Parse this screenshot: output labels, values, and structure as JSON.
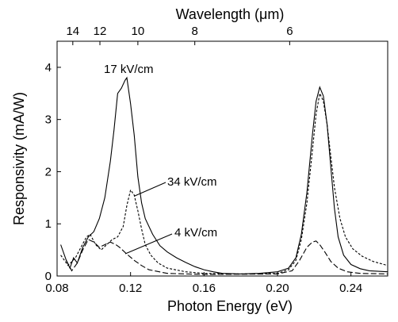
{
  "chart_data": {
    "type": "line",
    "xlabel": "Photon Energy (eV)",
    "ylabel": "Responsivity (mA/W)",
    "top_axis_label_prefix": "Wavelength (",
    "top_axis_label_unit": "μm",
    "top_axis_label_suffix": ")",
    "xlim": [
      0.08,
      0.26
    ],
    "ylim": [
      0,
      4.5
    ],
    "xticks": [
      0.08,
      0.12,
      0.16,
      0.2,
      0.24
    ],
    "xtick_labels": [
      "0.08",
      "0.12",
      "0.16",
      "0.20",
      "0.24"
    ],
    "yticks": [
      0,
      1,
      2,
      3,
      4
    ],
    "ytick_labels": [
      "0",
      "1",
      "2",
      "3",
      "4"
    ],
    "top_ticks_um": [
      14,
      12,
      10,
      8,
      6
    ],
    "top_tick_labels": [
      "14",
      "12",
      "10",
      "8",
      "6"
    ],
    "grid": false,
    "series": [
      {
        "name": "17 kV/cm",
        "dash": "solid",
        "points": [
          [
            0.082,
            0.6
          ],
          [
            0.085,
            0.3
          ],
          [
            0.087,
            0.15
          ],
          [
            0.089,
            0.35
          ],
          [
            0.091,
            0.25
          ],
          [
            0.094,
            0.55
          ],
          [
            0.097,
            0.75
          ],
          [
            0.1,
            0.85
          ],
          [
            0.103,
            1.1
          ],
          [
            0.106,
            1.5
          ],
          [
            0.109,
            2.2
          ],
          [
            0.111,
            2.8
          ],
          [
            0.113,
            3.5
          ],
          [
            0.115,
            3.6
          ],
          [
            0.117,
            3.75
          ],
          [
            0.118,
            3.8
          ],
          [
            0.12,
            3.3
          ],
          [
            0.122,
            2.7
          ],
          [
            0.124,
            1.9
          ],
          [
            0.126,
            1.4
          ],
          [
            0.128,
            1.1
          ],
          [
            0.132,
            0.8
          ],
          [
            0.136,
            0.58
          ],
          [
            0.14,
            0.46
          ],
          [
            0.145,
            0.35
          ],
          [
            0.15,
            0.26
          ],
          [
            0.155,
            0.18
          ],
          [
            0.16,
            0.12
          ],
          [
            0.165,
            0.08
          ],
          [
            0.17,
            0.05
          ],
          [
            0.18,
            0.04
          ],
          [
            0.19,
            0.05
          ],
          [
            0.2,
            0.08
          ],
          [
            0.206,
            0.15
          ],
          [
            0.21,
            0.35
          ],
          [
            0.213,
            0.8
          ],
          [
            0.216,
            1.6
          ],
          [
            0.219,
            2.7
          ],
          [
            0.221,
            3.35
          ],
          [
            0.223,
            3.62
          ],
          [
            0.225,
            3.45
          ],
          [
            0.227,
            2.9
          ],
          [
            0.229,
            2.1
          ],
          [
            0.231,
            1.3
          ],
          [
            0.233,
            0.75
          ],
          [
            0.236,
            0.4
          ],
          [
            0.24,
            0.22
          ],
          [
            0.245,
            0.14
          ],
          [
            0.25,
            0.1
          ],
          [
            0.26,
            0.08
          ]
        ]
      },
      {
        "name": "34 kV/cm",
        "dash": "short-dash",
        "points": [
          [
            0.082,
            0.4
          ],
          [
            0.086,
            0.2
          ],
          [
            0.09,
            0.35
          ],
          [
            0.093,
            0.55
          ],
          [
            0.096,
            0.75
          ],
          [
            0.098,
            0.8
          ],
          [
            0.101,
            0.6
          ],
          [
            0.104,
            0.5
          ],
          [
            0.107,
            0.6
          ],
          [
            0.11,
            0.7
          ],
          [
            0.113,
            0.75
          ],
          [
            0.116,
            0.95
          ],
          [
            0.118,
            1.35
          ],
          [
            0.12,
            1.65
          ],
          [
            0.122,
            1.55
          ],
          [
            0.124,
            1.25
          ],
          [
            0.126,
            0.9
          ],
          [
            0.128,
            0.6
          ],
          [
            0.131,
            0.4
          ],
          [
            0.135,
            0.25
          ],
          [
            0.14,
            0.15
          ],
          [
            0.15,
            0.08
          ],
          [
            0.16,
            0.05
          ],
          [
            0.18,
            0.04
          ],
          [
            0.2,
            0.05
          ],
          [
            0.206,
            0.12
          ],
          [
            0.21,
            0.3
          ],
          [
            0.213,
            0.7
          ],
          [
            0.216,
            1.4
          ],
          [
            0.219,
            2.4
          ],
          [
            0.221,
            3.1
          ],
          [
            0.223,
            3.5
          ],
          [
            0.225,
            3.35
          ],
          [
            0.227,
            2.9
          ],
          [
            0.229,
            2.3
          ],
          [
            0.231,
            1.7
          ],
          [
            0.234,
            1.1
          ],
          [
            0.237,
            0.75
          ],
          [
            0.241,
            0.52
          ],
          [
            0.246,
            0.38
          ],
          [
            0.252,
            0.28
          ],
          [
            0.258,
            0.22
          ],
          [
            0.26,
            0.2
          ]
        ]
      },
      {
        "name": "4 kV/cm",
        "dash": "long-dash",
        "points": [
          [
            0.085,
            0.3
          ],
          [
            0.088,
            0.1
          ],
          [
            0.091,
            0.25
          ],
          [
            0.094,
            0.5
          ],
          [
            0.097,
            0.7
          ],
          [
            0.1,
            0.65
          ],
          [
            0.103,
            0.55
          ],
          [
            0.106,
            0.6
          ],
          [
            0.109,
            0.65
          ],
          [
            0.112,
            0.6
          ],
          [
            0.114,
            0.55
          ],
          [
            0.118,
            0.42
          ],
          [
            0.122,
            0.3
          ],
          [
            0.126,
            0.2
          ],
          [
            0.13,
            0.12
          ],
          [
            0.14,
            0.05
          ],
          [
            0.16,
            0.03
          ],
          [
            0.2,
            0.04
          ],
          [
            0.208,
            0.1
          ],
          [
            0.212,
            0.3
          ],
          [
            0.216,
            0.55
          ],
          [
            0.219,
            0.65
          ],
          [
            0.221,
            0.67
          ],
          [
            0.223,
            0.6
          ],
          [
            0.226,
            0.45
          ],
          [
            0.229,
            0.28
          ],
          [
            0.233,
            0.15
          ],
          [
            0.238,
            0.08
          ],
          [
            0.245,
            0.05
          ],
          [
            0.26,
            0.04
          ]
        ]
      }
    ],
    "annotations": [
      {
        "text": "17 kV/cm",
        "series": "17 kV/cm"
      },
      {
        "text": "34 kV/cm",
        "series": "34 kV/cm"
      },
      {
        "text": "4 kV/cm",
        "series": "4 kV/cm"
      }
    ]
  }
}
